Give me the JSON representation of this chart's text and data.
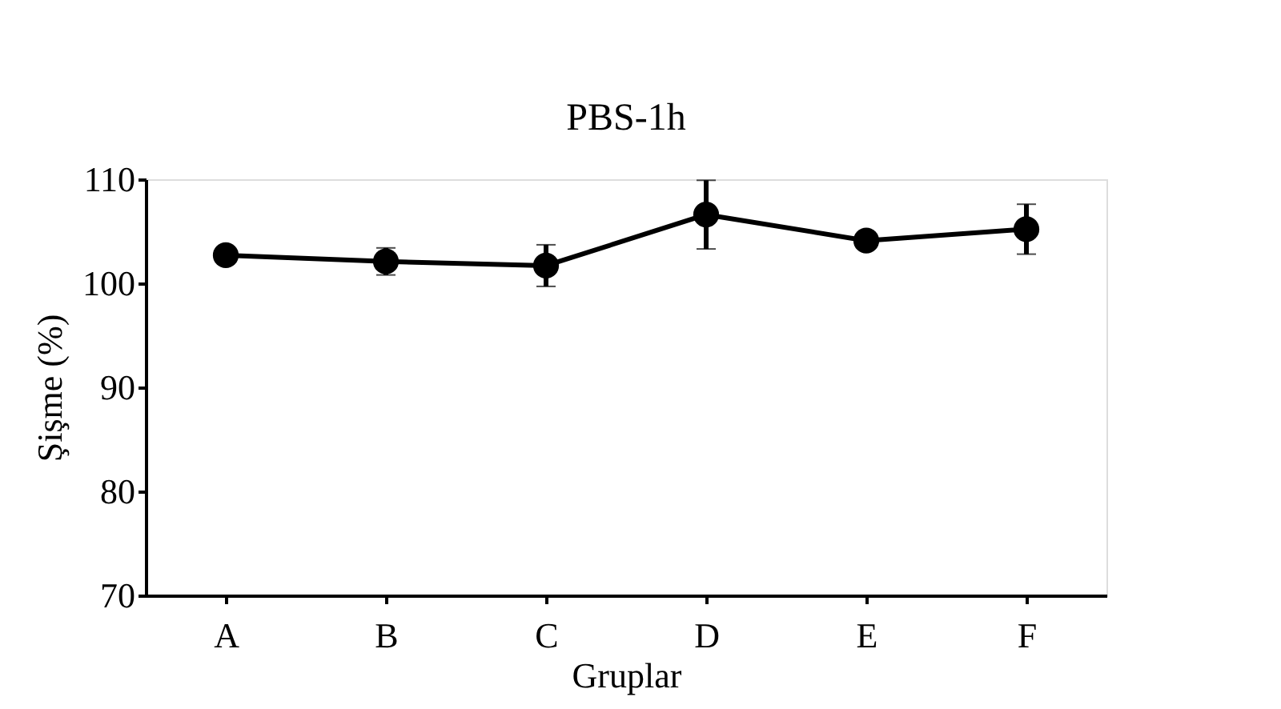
{
  "chart_data": {
    "type": "line",
    "title": "PBS-1h",
    "xlabel": "Gruplar",
    "ylabel": "Şişme (%)",
    "categories": [
      "A",
      "B",
      "C",
      "D",
      "E",
      "F"
    ],
    "series": [
      {
        "color": "#000000",
        "values": [
          102.7,
          102.1,
          101.7,
          106.6,
          104.1,
          105.2
        ],
        "errors": [
          null,
          1.3,
          2.0,
          3.3,
          null,
          2.4
        ]
      }
    ],
    "ylim": [
      70,
      110
    ],
    "yticks": [
      70,
      80,
      90,
      100,
      110
    ],
    "grid": false,
    "legend": false,
    "marker": "circle",
    "line_style": "solid"
  }
}
